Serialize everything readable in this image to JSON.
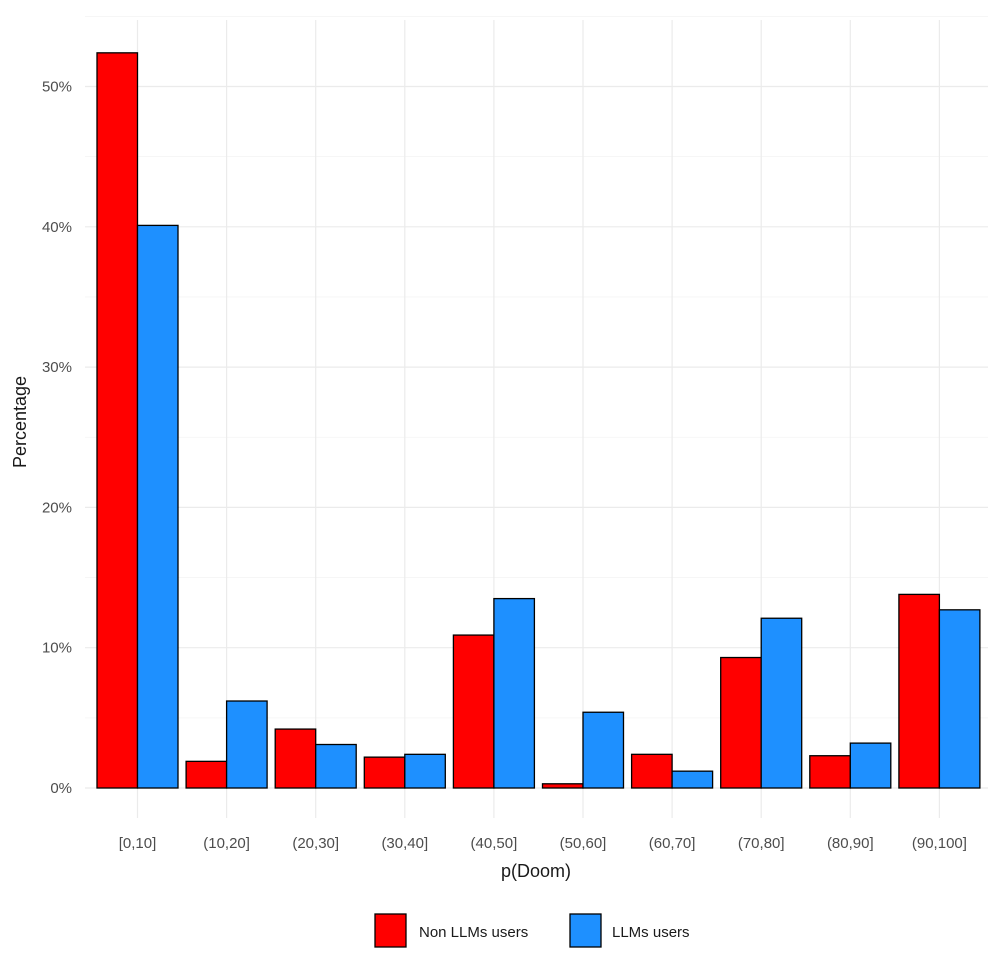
{
  "chart_data": {
    "type": "bar",
    "title": "",
    "xlabel": "p(Doom)",
    "ylabel": "Percentage",
    "categories": [
      "[0,10]",
      "(10,20]",
      "(20,30]",
      "(30,40]",
      "(40,50]",
      "(50,60]",
      "(60,70]",
      "(70,80]",
      "(80,90]",
      "(90,100]"
    ],
    "series": [
      {
        "name": "Non LLMs users",
        "color": "#ff0000",
        "values": [
          52.4,
          1.9,
          4.2,
          2.2,
          10.9,
          0.3,
          2.4,
          9.3,
          2.3,
          13.8
        ]
      },
      {
        "name": "LLMs users",
        "color": "#1e90ff",
        "values": [
          40.1,
          6.2,
          3.1,
          2.4,
          13.5,
          5.4,
          1.2,
          12.1,
          3.2,
          12.7
        ]
      }
    ],
    "ylim": [
      0,
      55
    ],
    "yticks": [
      0,
      10,
      20,
      30,
      40,
      50
    ],
    "ytick_labels": [
      "0%",
      "10%",
      "20%",
      "30%",
      "40%",
      "50%"
    ],
    "grid": true,
    "legend_position": "bottom"
  }
}
